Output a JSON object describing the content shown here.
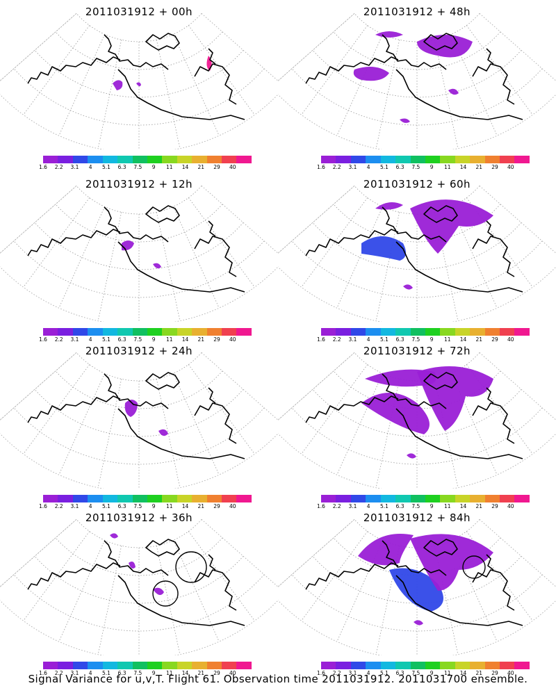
{
  "panels": [
    {
      "title": "2011031912 + 00h"
    },
    {
      "title": "2011031912 + 48h"
    },
    {
      "title": "2011031912 + 12h"
    },
    {
      "title": "2011031912 + 60h"
    },
    {
      "title": "2011031912 + 24h"
    },
    {
      "title": "2011031912 + 72h"
    },
    {
      "title": "2011031912 + 36h"
    },
    {
      "title": "2011031912 + 84h"
    }
  ],
  "colorbar": {
    "labels": [
      "1.6",
      "2.2",
      "3.1",
      "4",
      "5.1",
      "6.3",
      "7.5",
      "9",
      "11",
      "14",
      "21",
      "29",
      "40"
    ],
    "colors": [
      "#9a1fd6",
      "#7a1fe0",
      "#3048e8",
      "#1c8ef0",
      "#12b8e0",
      "#10c8b0",
      "#10c060",
      "#1ed020",
      "#88d820",
      "#c8d428",
      "#e8b030",
      "#f08030",
      "#f04050",
      "#f01890"
    ]
  },
  "caption": "Signal Variance for u,v,T. Flight 61. Observation time 2011031912. 2011031700 ensemble."
}
